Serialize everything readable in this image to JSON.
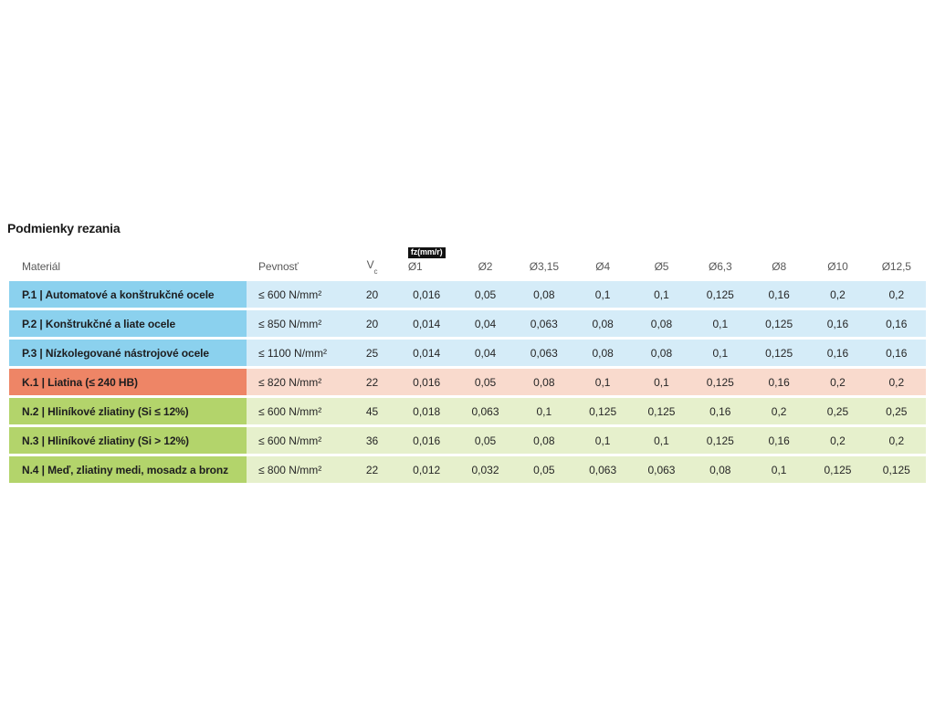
{
  "page": {
    "title": "Podmienky rezania"
  },
  "table": {
    "badge": "fz(mm/r)",
    "headers": {
      "material": "Materiál",
      "strength": "Pevnosť",
      "vc_base": "V",
      "vc_sub": "c",
      "diameters": [
        "Ø1",
        "Ø2",
        "Ø3,15",
        "Ø4",
        "Ø5",
        "Ø6,3",
        "Ø8",
        "Ø10",
        "Ø12,5"
      ]
    },
    "colors": {
      "P": {
        "accent": "#8bd1ee",
        "light": "#d5ecf8"
      },
      "K": {
        "accent": "#ee8566",
        "light": "#f9dacd"
      },
      "N": {
        "accent": "#b3d46b",
        "light": "#e6f0cc"
      }
    },
    "rows": [
      {
        "group": "P",
        "label": "P.1 | Automatové a konštrukčné ocele",
        "strength": "≤ 600 N/mm²",
        "vc": "20",
        "values": [
          "0,016",
          "0,05",
          "0,08",
          "0,1",
          "0,1",
          "0,125",
          "0,16",
          "0,2",
          "0,2"
        ]
      },
      {
        "group": "P",
        "label": "P.2 | Konštrukčné a liate ocele",
        "strength": "≤ 850 N/mm²",
        "vc": "20",
        "values": [
          "0,014",
          "0,04",
          "0,063",
          "0,08",
          "0,08",
          "0,1",
          "0,125",
          "0,16",
          "0,16"
        ]
      },
      {
        "group": "P",
        "label": "P.3 | Nízkolegované nástrojové ocele",
        "strength": "≤ 1100 N/mm²",
        "vc": "25",
        "values": [
          "0,014",
          "0,04",
          "0,063",
          "0,08",
          "0,08",
          "0,1",
          "0,125",
          "0,16",
          "0,16"
        ]
      },
      {
        "group": "K",
        "label": "K.1 | Liatina (≤ 240 HB)",
        "strength": "≤ 820 N/mm²",
        "vc": "22",
        "values": [
          "0,016",
          "0,05",
          "0,08",
          "0,1",
          "0,1",
          "0,125",
          "0,16",
          "0,2",
          "0,2"
        ]
      },
      {
        "group": "N",
        "label": "N.2 | Hliníkové zliatiny (Si ≤ 12%)",
        "strength": "≤ 600 N/mm²",
        "vc": "45",
        "values": [
          "0,018",
          "0,063",
          "0,1",
          "0,125",
          "0,125",
          "0,16",
          "0,2",
          "0,25",
          "0,25"
        ]
      },
      {
        "group": "N",
        "label": "N.3 | Hliníkové zliatiny (Si > 12%)",
        "strength": "≤ 600 N/mm²",
        "vc": "36",
        "values": [
          "0,016",
          "0,05",
          "0,08",
          "0,1",
          "0,1",
          "0,125",
          "0,16",
          "0,2",
          "0,2"
        ]
      },
      {
        "group": "N",
        "label": "N.4 | Meď, zliatiny medi, mosadz a bronz",
        "strength": "≤ 800 N/mm²",
        "vc": "22",
        "values": [
          "0,012",
          "0,032",
          "0,05",
          "0,063",
          "0,063",
          "0,08",
          "0,1",
          "0,125",
          "0,125"
        ]
      }
    ]
  }
}
